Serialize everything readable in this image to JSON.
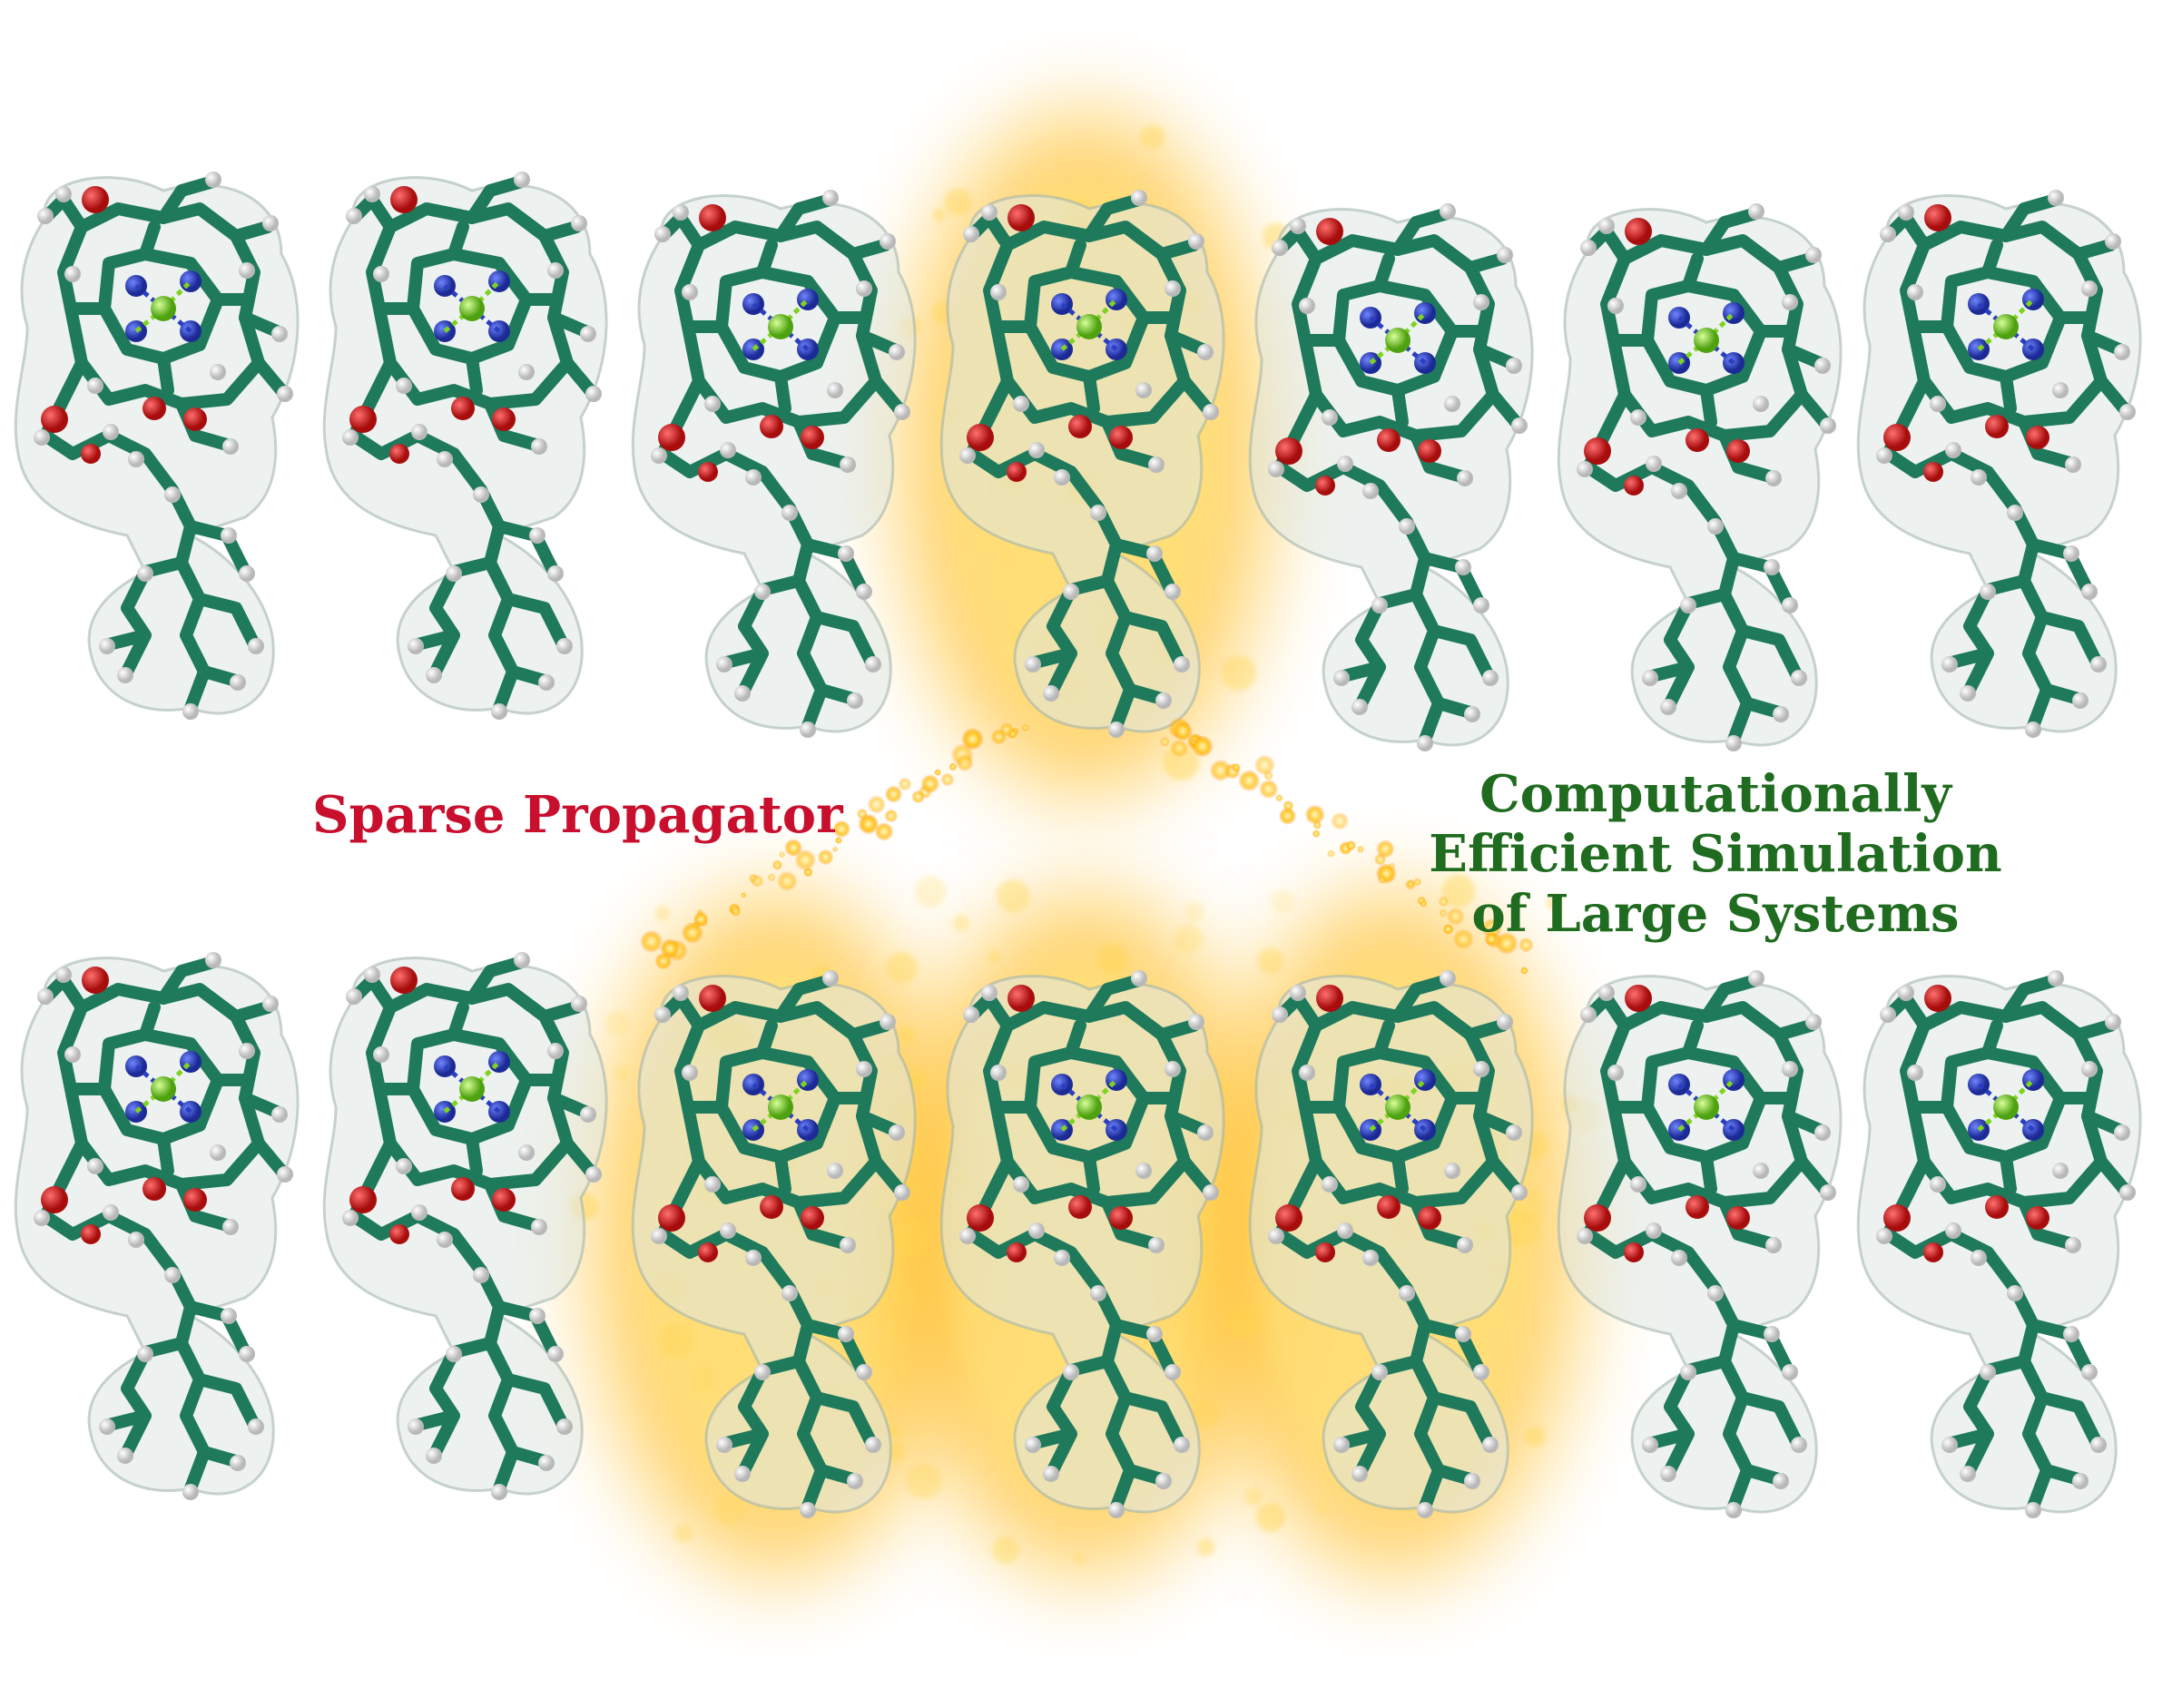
{
  "labels": {
    "left": "Sparse Propagator",
    "right_lines": [
      "Computationally",
      "Efficient Simulation",
      "of Large Systems"
    ]
  },
  "colors": {
    "left_label": "#c8102e",
    "right_label": "#1f6b1f",
    "carbon": "#1f7a5c",
    "hydrogen": "#ececec",
    "oxygen": "#cc1a1a",
    "nitrogen": "#2a3fc0",
    "magnesium": "#7ed321",
    "glow": "#ffb300"
  },
  "molecules": {
    "row1": [
      {
        "name": "chlorophyll-r1-1",
        "active": false
      },
      {
        "name": "chlorophyll-r1-2",
        "active": false
      },
      {
        "name": "chlorophyll-r1-3",
        "active": false
      },
      {
        "name": "chlorophyll-r1-4",
        "active": true
      },
      {
        "name": "chlorophyll-r1-5",
        "active": false
      },
      {
        "name": "chlorophyll-r1-6",
        "active": false
      },
      {
        "name": "chlorophyll-r1-7",
        "active": false
      }
    ],
    "row2": [
      {
        "name": "chlorophyll-r2-1",
        "active": false
      },
      {
        "name": "chlorophyll-r2-2",
        "active": false
      },
      {
        "name": "chlorophyll-r2-3",
        "active": true
      },
      {
        "name": "chlorophyll-r2-4",
        "active": true
      },
      {
        "name": "chlorophyll-r2-5",
        "active": true
      },
      {
        "name": "chlorophyll-r2-6",
        "active": false
      },
      {
        "name": "chlorophyll-r2-7",
        "active": false
      }
    ]
  }
}
